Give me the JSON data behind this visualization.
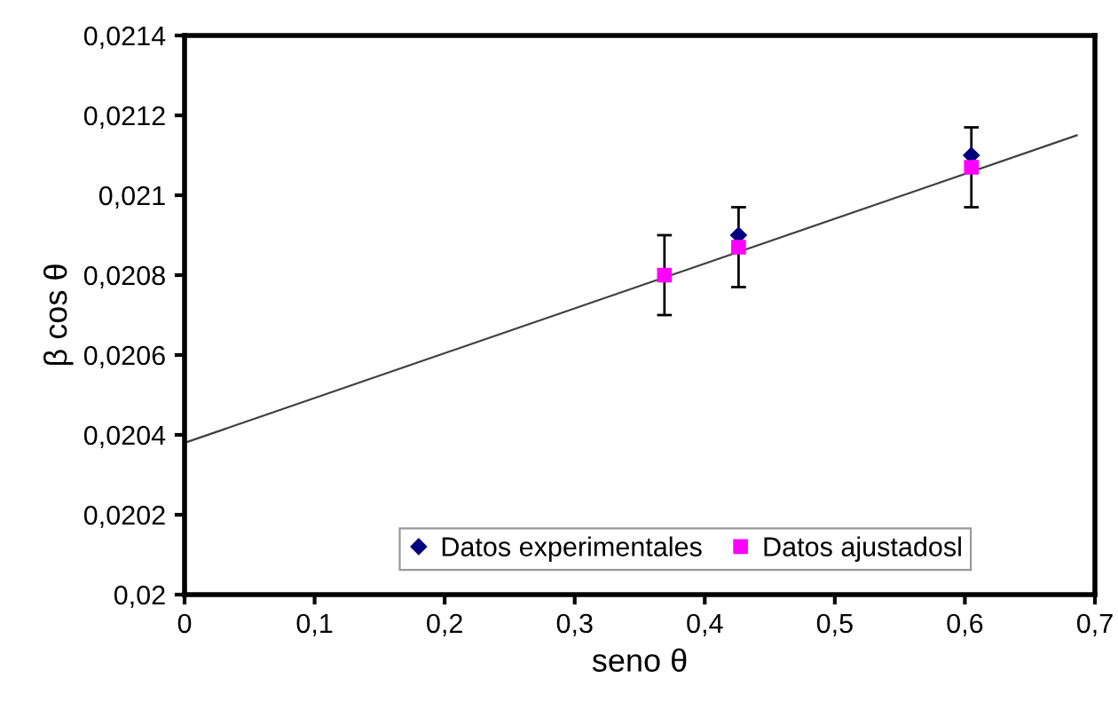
{
  "chart_data": {
    "type": "scatter",
    "xlabel": "seno θ",
    "ylabel": "β cos θ",
    "xlim": [
      0,
      0.7
    ],
    "ylim": [
      0.02,
      0.0214
    ],
    "xticks": [
      0,
      {
        "value": 0.1,
        "label": "0,1"
      },
      {
        "value": 0.2,
        "label": "0,2"
      },
      {
        "value": 0.3,
        "label": "0,3"
      },
      {
        "value": 0.4,
        "label": "0,4"
      },
      {
        "value": 0.5,
        "label": "0,5"
      },
      {
        "value": 0.6,
        "label": "0,6"
      },
      {
        "value": 0.7,
        "label": "0,7"
      }
    ],
    "yticks": [
      {
        "value": 0.02,
        "label": "0,02"
      },
      {
        "value": 0.0202,
        "label": "0,0202"
      },
      {
        "value": 0.0204,
        "label": "0,0204"
      },
      {
        "value": 0.0206,
        "label": "0,0206"
      },
      {
        "value": 0.0208,
        "label": "0,0208"
      },
      {
        "value": 0.021,
        "label": "0,021"
      },
      {
        "value": 0.0212,
        "label": "0,0212"
      },
      {
        "value": 0.0214,
        "label": "0,0214"
      }
    ],
    "grid": false,
    "legend": "bottom",
    "series": [
      {
        "type": "line",
        "color": "#404040",
        "marker": "none",
        "x": [
          0,
          0.686
        ],
        "values": [
          0.02038,
          0.02115
        ]
      },
      {
        "name": "Datos experimentales",
        "color": "#000080",
        "marker": "diamond",
        "x": [
          0.426,
          0.605
        ],
        "values": [
          0.0209,
          0.0211
        ]
      },
      {
        "name": "Datos ajustadosl",
        "color": "#ff00ff",
        "marker": "square",
        "x": [
          0.369,
          0.426,
          0.605
        ],
        "values": [
          0.0208,
          0.02087,
          0.02107
        ],
        "errors": [
          0.0001,
          0.0001,
          0.0001
        ]
      }
    ]
  }
}
